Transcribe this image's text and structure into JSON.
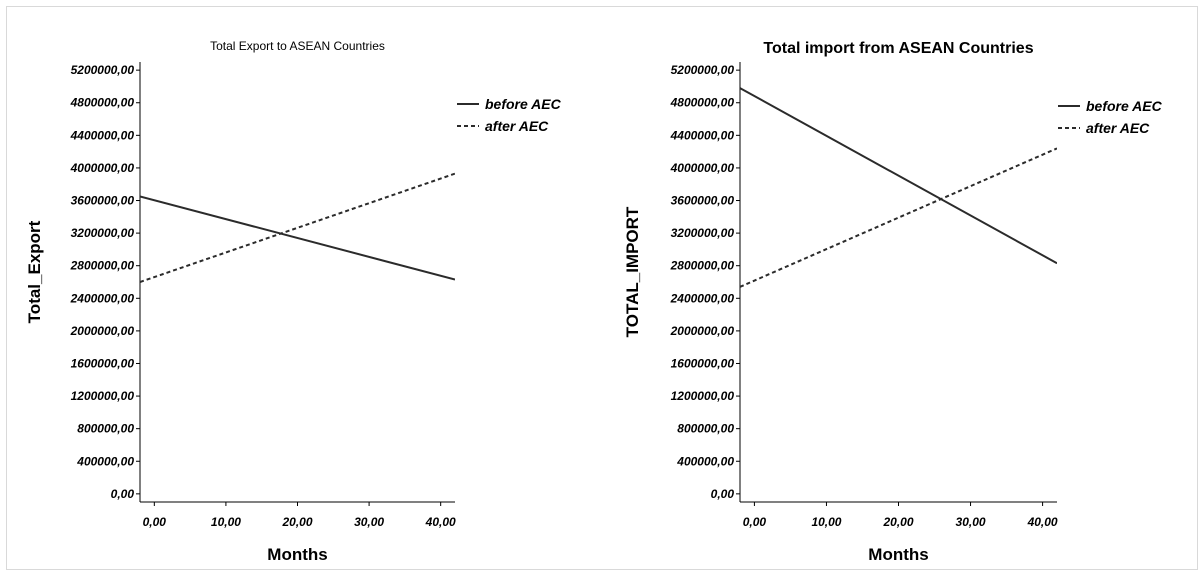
{
  "chart_data": [
    {
      "type": "line",
      "title": "Total Export to ASEAN Countries",
      "xlabel": "Months",
      "ylabel": "Total_Export",
      "xlim": [
        -2,
        42
      ],
      "ylim": [
        -100000,
        5300000
      ],
      "xticks": [
        0,
        10,
        20,
        30,
        40
      ],
      "xtick_labels": [
        "0,00",
        "10,00",
        "20,00",
        "30,00",
        "40,00"
      ],
      "yticks": [
        0,
        400000,
        800000,
        1200000,
        1600000,
        2000000,
        2400000,
        2800000,
        3200000,
        3600000,
        4000000,
        4400000,
        4800000,
        5200000
      ],
      "ytick_labels": [
        "0,00",
        "400000,00",
        "800000,00",
        "1200000,00",
        "1600000,00",
        "2000000,00",
        "2400000,00",
        "2800000,00",
        "3200000,00",
        "3600000,00",
        "4000000,00",
        "4400000,00",
        "4800000,00",
        "5200000,00"
      ],
      "grid": false,
      "legend_position": "top-right",
      "series": [
        {
          "name": "before AEC",
          "style": "solid",
          "x": [
            -2,
            42
          ],
          "y": [
            3650000,
            2630000
          ]
        },
        {
          "name": "after AEC",
          "style": "dashed",
          "x": [
            -2,
            42
          ],
          "y": [
            2600000,
            3930000
          ]
        }
      ]
    },
    {
      "type": "line",
      "title": "Total import from ASEAN Countries",
      "xlabel": "Months",
      "ylabel": "TOTAL_IMPORT",
      "xlim": [
        -2,
        42
      ],
      "ylim": [
        -100000,
        5300000
      ],
      "xticks": [
        0,
        10,
        20,
        30,
        40
      ],
      "xtick_labels": [
        "0,00",
        "10,00",
        "20,00",
        "30,00",
        "40,00"
      ],
      "yticks": [
        0,
        400000,
        800000,
        1200000,
        1600000,
        2000000,
        2400000,
        2800000,
        3200000,
        3600000,
        4000000,
        4400000,
        4800000,
        5200000
      ],
      "ytick_labels": [
        "0,00",
        "400000,00",
        "800000,00",
        "1200000,00",
        "1600000,00",
        "2000000,00",
        "2400000,00",
        "2800000,00",
        "3200000,00",
        "3600000,00",
        "4000000,00",
        "4400000,00",
        "4800000,00",
        "5200000,00"
      ],
      "grid": false,
      "legend_position": "top-right",
      "series": [
        {
          "name": "before AEC",
          "style": "solid",
          "x": [
            -2,
            42
          ],
          "y": [
            4980000,
            2830000
          ]
        },
        {
          "name": "after AEC",
          "style": "dashed",
          "x": [
            -2,
            42
          ],
          "y": [
            2540000,
            4240000
          ]
        }
      ]
    }
  ]
}
